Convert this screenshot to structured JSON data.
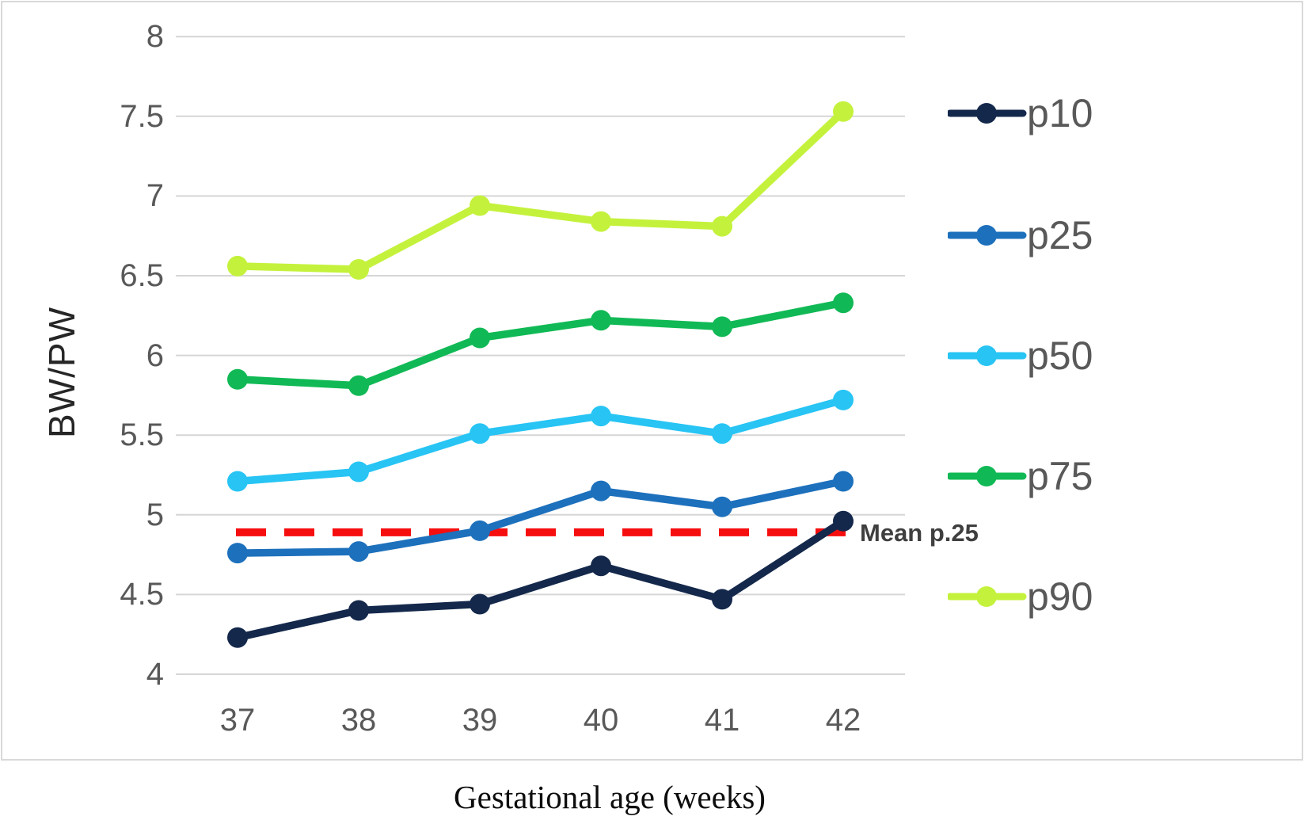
{
  "chart_data": {
    "type": "line",
    "title": "",
    "xlabel": "Gestational age (weeks)",
    "ylabel": "BW/PW",
    "categories": [
      "37",
      "38",
      "39",
      "40",
      "41",
      "42"
    ],
    "yticks": [
      "8",
      "7.5",
      "7",
      "6.5",
      "6",
      "5.5",
      "5",
      "4.5",
      "4"
    ],
    "ylim": [
      4,
      8
    ],
    "grid": "horizontal",
    "legend_position": "right",
    "series": [
      {
        "name": "p10",
        "color": "#14284b",
        "values": [
          4.23,
          4.4,
          4.44,
          4.68,
          4.47,
          4.96
        ]
      },
      {
        "name": "p25",
        "color": "#1d70bc",
        "values": [
          4.76,
          4.77,
          4.9,
          5.15,
          5.05,
          5.21
        ]
      },
      {
        "name": "p50",
        "color": "#27c4f4",
        "values": [
          5.21,
          5.27,
          5.51,
          5.62,
          5.51,
          5.72
        ]
      },
      {
        "name": "p75",
        "color": "#10b955",
        "values": [
          5.85,
          5.81,
          6.11,
          6.22,
          6.18,
          6.33
        ]
      },
      {
        "name": "p90",
        "color": "#c4f23c",
        "values": [
          6.56,
          6.54,
          6.94,
          6.84,
          6.81,
          7.53
        ]
      }
    ],
    "reference_line": {
      "label": "Mean p.25",
      "value": 4.89,
      "color": "#f60e0e",
      "style": "dashed"
    },
    "colors": {
      "gridline": "#d6d6d6",
      "frame_border": "#d9d9d9",
      "tick_text": "#595959",
      "legend_text": "#595959"
    }
  }
}
